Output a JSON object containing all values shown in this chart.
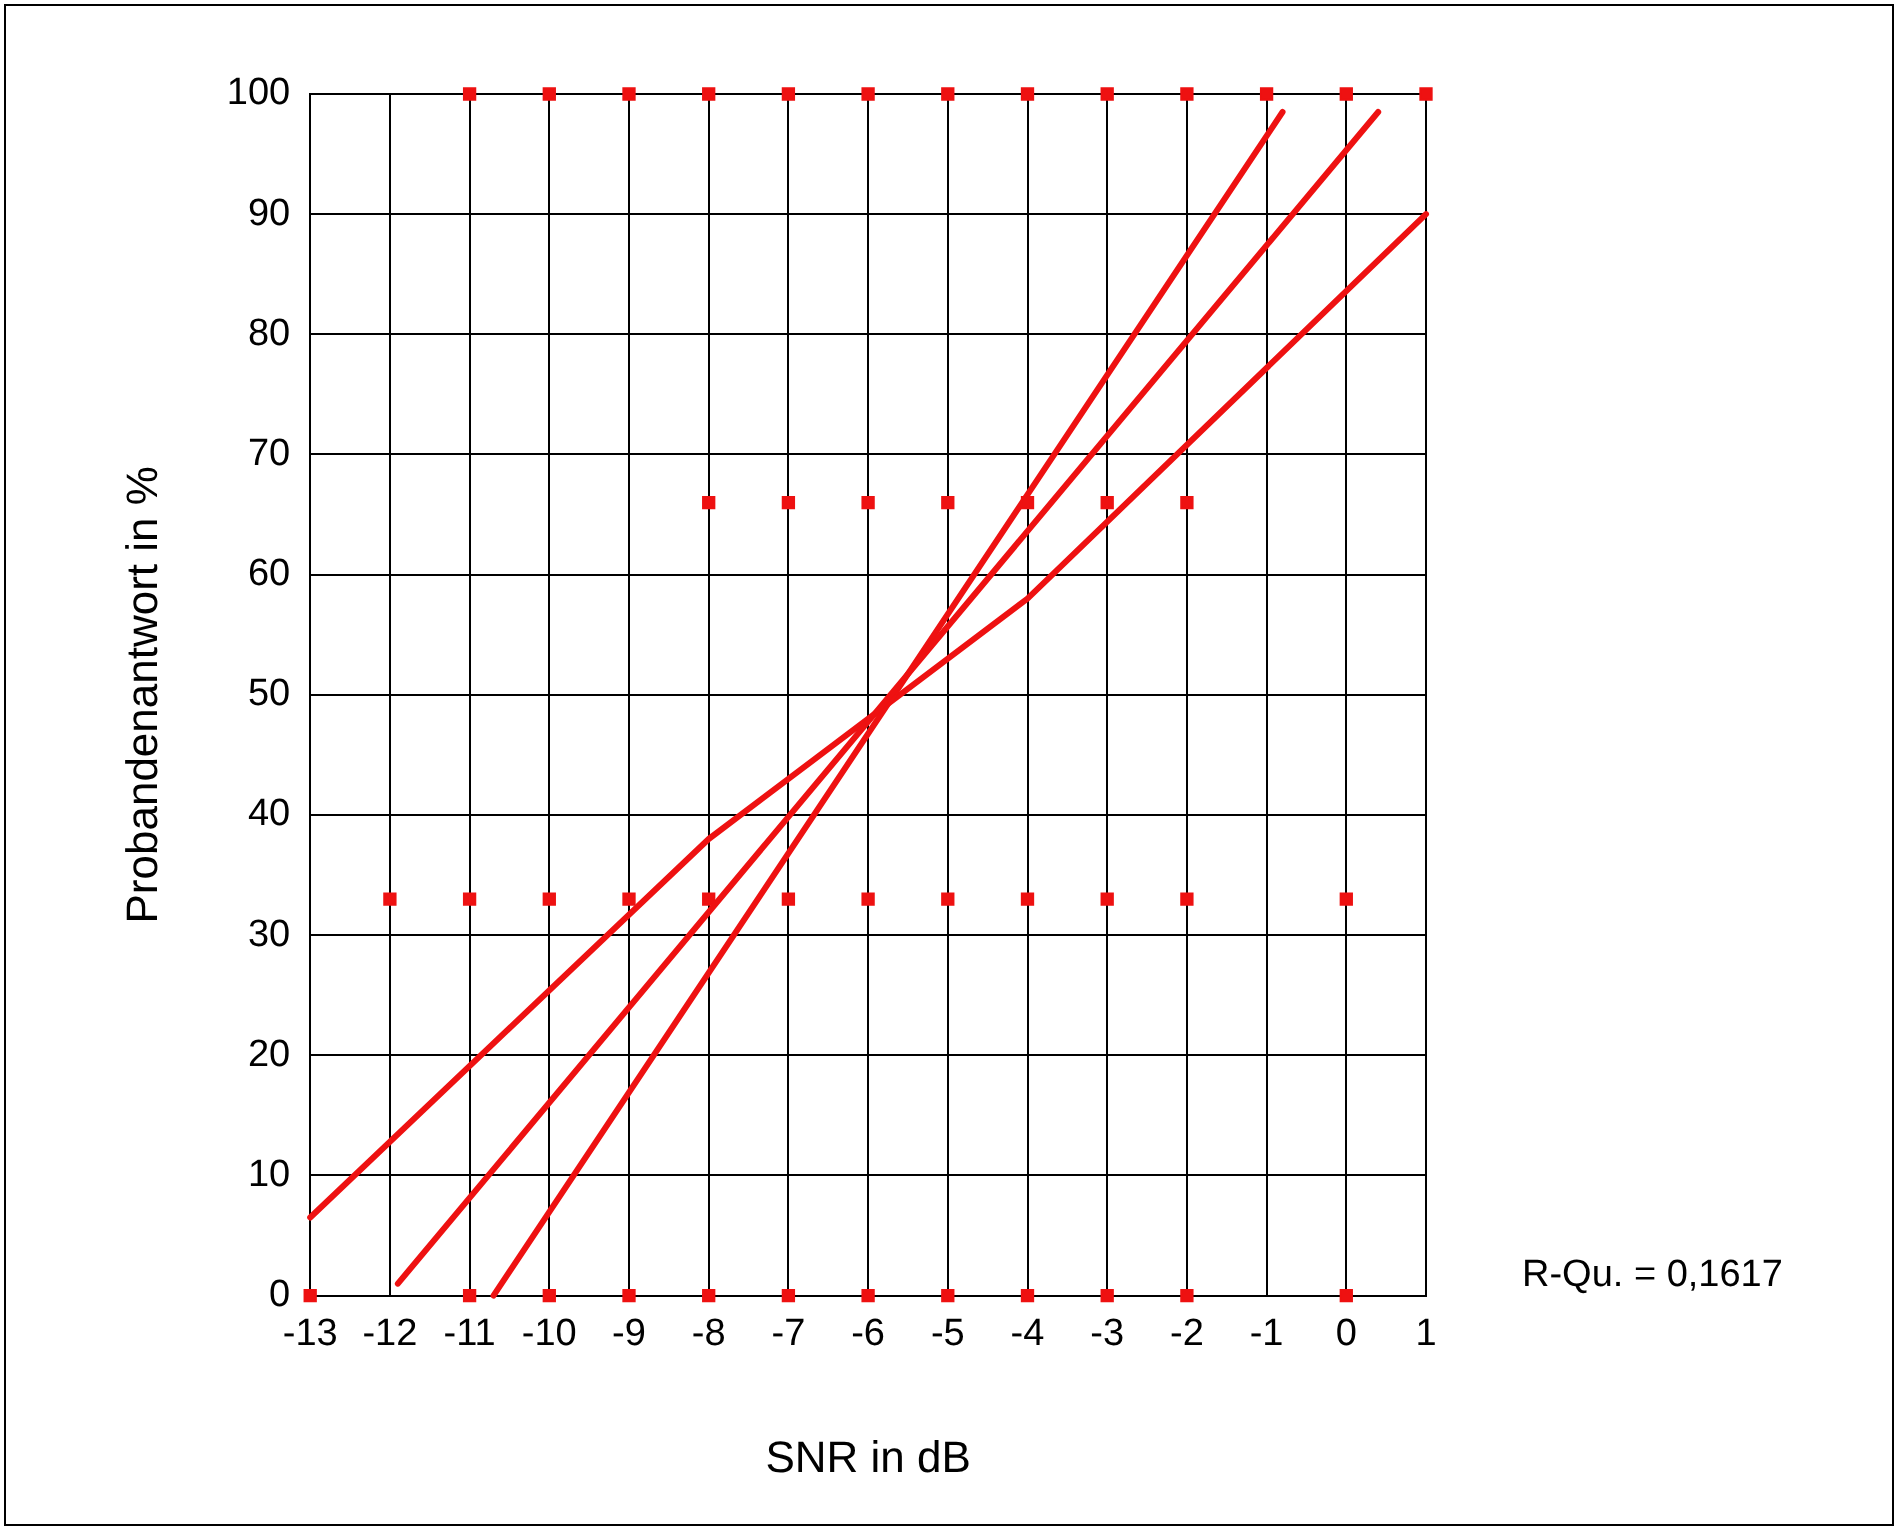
{
  "chart_data": {
    "type": "scatter",
    "xlabel": "SNR in dB",
    "ylabel": "Probandenantwort in %",
    "xlim": [
      -13,
      1
    ],
    "xticks": [
      -13,
      -12,
      -11,
      -10,
      -9,
      -8,
      -7,
      -6,
      -5,
      -4,
      -3,
      -2,
      -1,
      0,
      1
    ],
    "ylim": [
      0,
      100
    ],
    "yticks": [
      0,
      10,
      20,
      30,
      40,
      50,
      60,
      70,
      80,
      90,
      100
    ],
    "grid": true,
    "legend": false,
    "marker": "square",
    "annotations": [
      "R-Qu. = 0,1617"
    ],
    "series": [
      {
        "type": "scatter",
        "color": "#ee1111",
        "x": [
          -11,
          -10,
          -9,
          -8,
          -7,
          -6,
          -5,
          -4,
          -3,
          -2,
          -1,
          0,
          1,
          -8,
          -7,
          -6,
          -5,
          -4,
          -3,
          -2,
          -12,
          -11,
          -10,
          -9,
          -8,
          -7,
          -6,
          -5,
          -4,
          -3,
          -2,
          0,
          -13,
          -11,
          -10,
          -9,
          -8,
          -7,
          -6,
          -5,
          -4,
          -3,
          -2,
          0
        ],
        "values": [
          100,
          100,
          100,
          100,
          100,
          100,
          100,
          100,
          100,
          100,
          100,
          100,
          100,
          66,
          66,
          66,
          66,
          66,
          66,
          66,
          33,
          33,
          33,
          33,
          33,
          33,
          33,
          33,
          33,
          33,
          33,
          33,
          0,
          0,
          0,
          0,
          0,
          0,
          0,
          0,
          0,
          0,
          0,
          0
        ]
      },
      {
        "type": "line",
        "color": "#ee1111",
        "x": [
          -11.9,
          0.4
        ],
        "values": [
          1,
          98.5
        ],
        "marker": "none"
      },
      {
        "type": "line",
        "color": "#ee1111",
        "x": [
          -10.7,
          -0.8
        ],
        "values": [
          0,
          98.5
        ],
        "marker": "none"
      },
      {
        "type": "line",
        "color": "#ee1111",
        "x": [
          -13,
          -8,
          -4,
          1
        ],
        "values": [
          6.5,
          38,
          58,
          90
        ],
        "marker": "none"
      }
    ]
  }
}
